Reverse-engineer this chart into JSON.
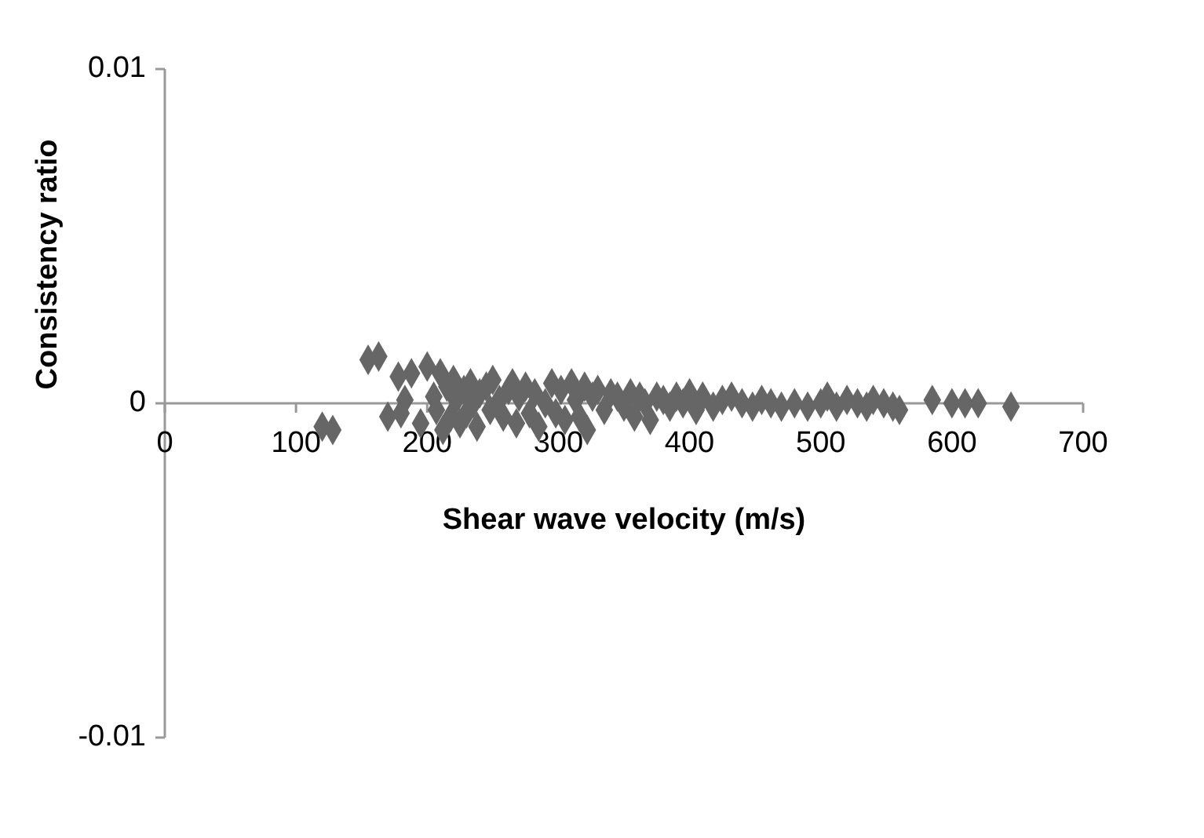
{
  "chart_data": {
    "type": "scatter",
    "xlabel": "Shear wave velocity (m/s)",
    "ylabel": "Consistency ratio",
    "xlim": [
      0,
      700
    ],
    "xticks": [
      0,
      100,
      200,
      300,
      400,
      500,
      600,
      700
    ],
    "ylim": [
      -0.01,
      0.01
    ],
    "yticks": [
      -0.01,
      0,
      0.01
    ],
    "grid": false,
    "marker": "diamond",
    "series": [
      {
        "color": "#666666",
        "x": [
          120,
          128,
          155,
          163,
          170,
          178,
          183,
          180,
          188,
          195,
          200,
          205,
          207,
          210,
          212,
          215,
          218,
          220,
          222,
          225,
          228,
          230,
          233,
          235,
          238,
          240,
          245,
          248,
          250,
          255,
          258,
          262,
          265,
          268,
          270,
          275,
          278,
          282,
          285,
          290,
          295,
          298,
          302,
          305,
          310,
          313,
          316,
          320,
          322,
          326,
          330,
          335,
          340,
          345,
          350,
          355,
          358,
          362,
          366,
          370,
          375,
          380,
          385,
          390,
          395,
          400,
          405,
          410,
          418,
          425,
          432,
          440,
          448,
          455,
          462,
          470,
          480,
          490,
          500,
          505,
          512,
          520,
          528,
          535,
          540,
          548,
          555,
          560,
          585,
          600,
          610,
          620,
          645
        ],
        "values": [
          -0.0007,
          -0.0008,
          0.0013,
          0.0014,
          -0.0004,
          0.0008,
          0.0001,
          -0.0003,
          0.0009,
          -0.0006,
          0.0011,
          0.0002,
          -0.0002,
          0.0009,
          -0.0008,
          0.0005,
          -0.0004,
          0.0007,
          0.0001,
          -0.0006,
          0.0004,
          -0.0003,
          0.0006,
          0,
          -0.0007,
          0.0003,
          0.0005,
          -0.0002,
          0.0007,
          0.0001,
          -0.0004,
          0.0004,
          0.0006,
          -0.0006,
          0.0002,
          0.0005,
          -0.0003,
          0.0003,
          -0.0007,
          0,
          0.0006,
          -0.0003,
          0.0004,
          -0.0005,
          0.0006,
          0.0001,
          -0.0004,
          0.0005,
          -0.0008,
          0.0002,
          0.0004,
          -0.0002,
          0.0003,
          0.0002,
          -0.0001,
          0.0003,
          -0.0004,
          0.0002,
          0,
          -0.0005,
          0.0002,
          0.0001,
          -0.0001,
          0.0002,
          0,
          0.0003,
          -0.0002,
          0.0002,
          -0.0001,
          0.0001,
          0.0002,
          0,
          -0.0001,
          0.0001,
          0,
          -0.0001,
          0,
          -0.0001,
          0,
          0.0002,
          -0.0001,
          0.0001,
          0,
          -0.0001,
          0.0001,
          0,
          -0.0001,
          -0.0002,
          0.0001,
          0,
          0,
          0,
          -0.0001
        ]
      }
    ]
  }
}
